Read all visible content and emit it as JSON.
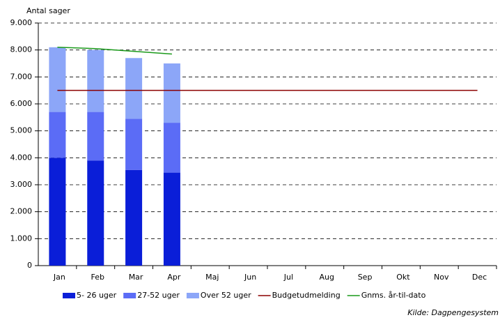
{
  "chart_data": {
    "type": "stacked_bar_line",
    "y_axis_label": "Antal sager",
    "source": "Kilde: Dagpengesystem",
    "categories": [
      "Jan",
      "Feb",
      "Mar",
      "Apr",
      "Maj",
      "Jun",
      "Jul",
      "Aug",
      "Sep",
      "Okt",
      "Nov",
      "Dec"
    ],
    "series": [
      {
        "name": "5- 26 uger",
        "type": "bar",
        "color": "#0a1ed8",
        "values": [
          4000,
          3900,
          3550,
          3450,
          null,
          null,
          null,
          null,
          null,
          null,
          null,
          null
        ]
      },
      {
        "name": "27-52 uger",
        "type": "bar",
        "color": "#5b6cf6",
        "values": [
          1700,
          1800,
          1900,
          1850,
          null,
          null,
          null,
          null,
          null,
          null,
          null,
          null
        ]
      },
      {
        "name": "Over 52 uger",
        "type": "bar",
        "color": "#8ca6f8",
        "values": [
          2400,
          2300,
          2250,
          2200,
          null,
          null,
          null,
          null,
          null,
          null,
          null,
          null
        ]
      },
      {
        "name": "Budgetudmelding",
        "type": "line",
        "color": "#8b0000",
        "values": [
          6500,
          6500,
          6500,
          6500,
          6500,
          6500,
          6500,
          6500,
          6500,
          6500,
          6500,
          6500
        ]
      },
      {
        "name": "Gnms. år-til-dato",
        "type": "line",
        "color": "#1a9a1a",
        "values": [
          8100,
          8050,
          7950,
          7850,
          null,
          null,
          null,
          null,
          null,
          null,
          null,
          null
        ]
      }
    ],
    "ylim": [
      0,
      9000
    ],
    "yticks": [
      0,
      {
        "value": 1000,
        "label": "1.000"
      },
      {
        "value": 2000,
        "label": "2.000"
      },
      {
        "value": 3000,
        "label": "3.000"
      },
      {
        "value": 4000,
        "label": "4.000"
      },
      {
        "value": 5000,
        "label": "5.000"
      },
      {
        "value": 6000,
        "label": "6.000"
      },
      {
        "value": 7000,
        "label": "7.000"
      },
      {
        "value": 8000,
        "label": "8.000"
      },
      {
        "value": 9000,
        "label": "9.000"
      }
    ],
    "grid": true
  }
}
